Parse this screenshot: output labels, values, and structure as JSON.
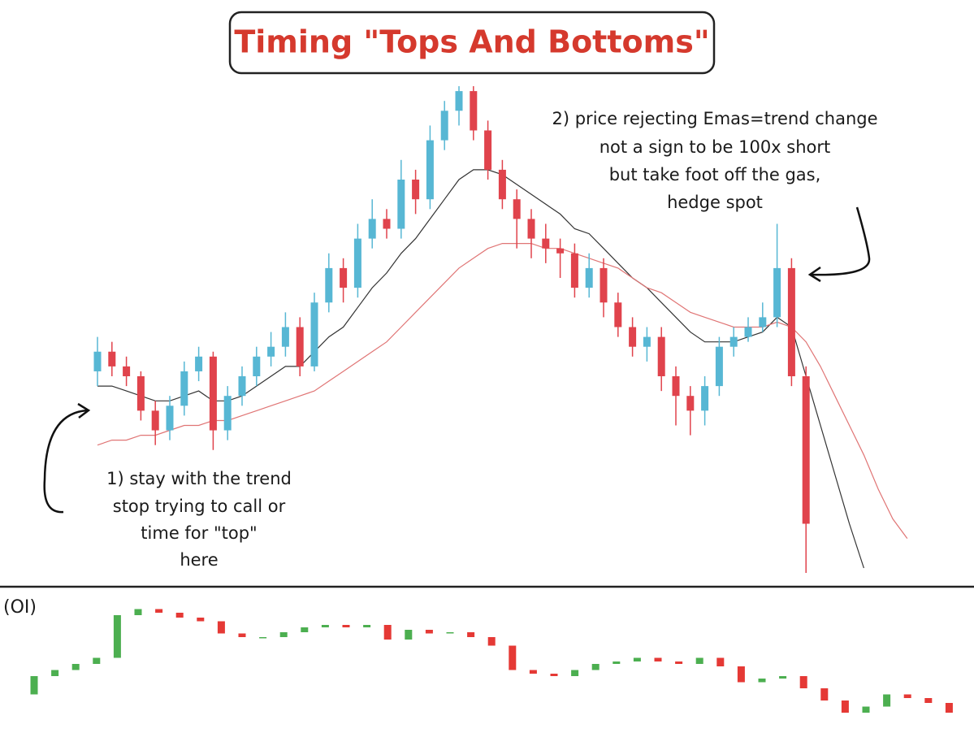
{
  "chart_data": [
    {
      "type": "candlestick",
      "title": "Timing \"Tops And Bottoms\"",
      "annotations": [
        [
          "1) stay with the trend",
          "stop trying to call or",
          "time for \"top\"",
          "here"
        ],
        [
          "2) price rejecting Emas=trend change",
          "not a sign to be 100x short",
          "but take foot off the gas,",
          "hedge spot"
        ]
      ],
      "ylim": [
        0,
        100
      ],
      "up_color": "#57b7d4",
      "down_color": "#e0434c",
      "open": [
        41,
        45,
        42,
        40,
        33,
        29,
        34,
        41,
        44,
        29,
        36,
        40,
        44,
        46,
        50,
        42,
        55,
        62,
        58,
        68,
        72,
        70,
        80,
        76,
        88,
        94,
        98,
        90,
        82,
        76,
        72,
        68,
        66,
        65,
        58,
        62,
        55,
        50,
        46,
        48,
        40,
        36,
        33,
        38,
        46,
        48,
        50,
        52,
        62,
        40
      ],
      "high": [
        48,
        47,
        44,
        41,
        35,
        36,
        43,
        46,
        45,
        38,
        42,
        46,
        49,
        53,
        52,
        57,
        65,
        64,
        71,
        76,
        74,
        84,
        82,
        91,
        96,
        99,
        99,
        92,
        84,
        78,
        74,
        71,
        68,
        67,
        65,
        64,
        57,
        52,
        50,
        50,
        42,
        38,
        40,
        48,
        50,
        52,
        55,
        71,
        64,
        42
      ],
      "low": [
        38,
        40,
        38,
        31,
        26,
        27,
        32,
        39,
        25,
        27,
        34,
        38,
        42,
        44,
        40,
        41,
        53,
        55,
        56,
        66,
        68,
        68,
        73,
        74,
        86,
        91,
        88,
        80,
        74,
        66,
        64,
        63,
        60,
        56,
        56,
        52,
        48,
        44,
        43,
        37,
        30,
        28,
        30,
        36,
        44,
        47,
        49,
        50,
        38,
        0
      ],
      "close": [
        45,
        42,
        40,
        33,
        29,
        34,
        41,
        44,
        29,
        36,
        40,
        44,
        46,
        50,
        42,
        55,
        62,
        58,
        68,
        72,
        70,
        80,
        76,
        88,
        94,
        98,
        90,
        82,
        76,
        72,
        68,
        66,
        65,
        58,
        62,
        55,
        50,
        46,
        48,
        40,
        36,
        33,
        38,
        46,
        48,
        50,
        52,
        62,
        40,
        10
      ],
      "lines": [
        {
          "color": "#333333",
          "values": [
            38,
            38,
            37,
            36,
            35,
            35,
            36,
            37,
            35,
            35,
            36,
            38,
            40,
            42,
            42,
            45,
            48,
            50,
            54,
            58,
            61,
            65,
            68,
            72,
            76,
            80,
            82,
            82,
            81,
            79,
            77,
            75,
            73,
            70,
            69,
            66,
            63,
            60,
            58,
            55,
            52,
            49,
            47,
            47,
            47,
            48,
            49,
            52,
            50,
            40,
            30,
            20,
            10,
            1
          ]
        },
        {
          "color": "#e07575",
          "values": [
            26,
            27,
            27,
            28,
            28,
            29,
            30,
            30,
            31,
            31,
            32,
            33,
            34,
            35,
            36,
            37,
            39,
            41,
            43,
            45,
            47,
            50,
            53,
            56,
            59,
            62,
            64,
            66,
            67,
            67,
            67,
            66,
            66,
            65,
            64,
            63,
            62,
            60,
            58,
            57,
            55,
            53,
            52,
            51,
            50,
            50,
            50,
            51,
            50,
            47,
            42,
            36,
            30,
            24,
            17,
            11,
            7
          ]
        }
      ]
    },
    {
      "type": "candlestick",
      "title": "(OI)",
      "ylim": [
        0,
        100
      ],
      "up_color": "#4caf50",
      "down_color": "#e53935",
      "open": [
        25,
        40,
        45,
        50,
        55,
        90,
        95,
        92,
        88,
        85,
        75,
        72,
        72,
        76,
        80,
        82,
        80,
        82,
        70,
        78,
        75,
        76,
        72,
        65,
        45,
        42,
        40,
        45,
        50,
        52,
        55,
        52,
        50,
        55,
        48,
        35,
        38,
        40,
        30,
        20,
        10,
        15,
        25,
        22,
        18
      ],
      "close": [
        40,
        45,
        50,
        55,
        90,
        95,
        92,
        88,
        85,
        75,
        72,
        72,
        76,
        80,
        82,
        80,
        82,
        70,
        78,
        75,
        76,
        72,
        65,
        45,
        42,
        40,
        45,
        50,
        52,
        55,
        52,
        50,
        55,
        48,
        35,
        38,
        40,
        30,
        20,
        10,
        15,
        25,
        22,
        18,
        10
      ]
    }
  ]
}
